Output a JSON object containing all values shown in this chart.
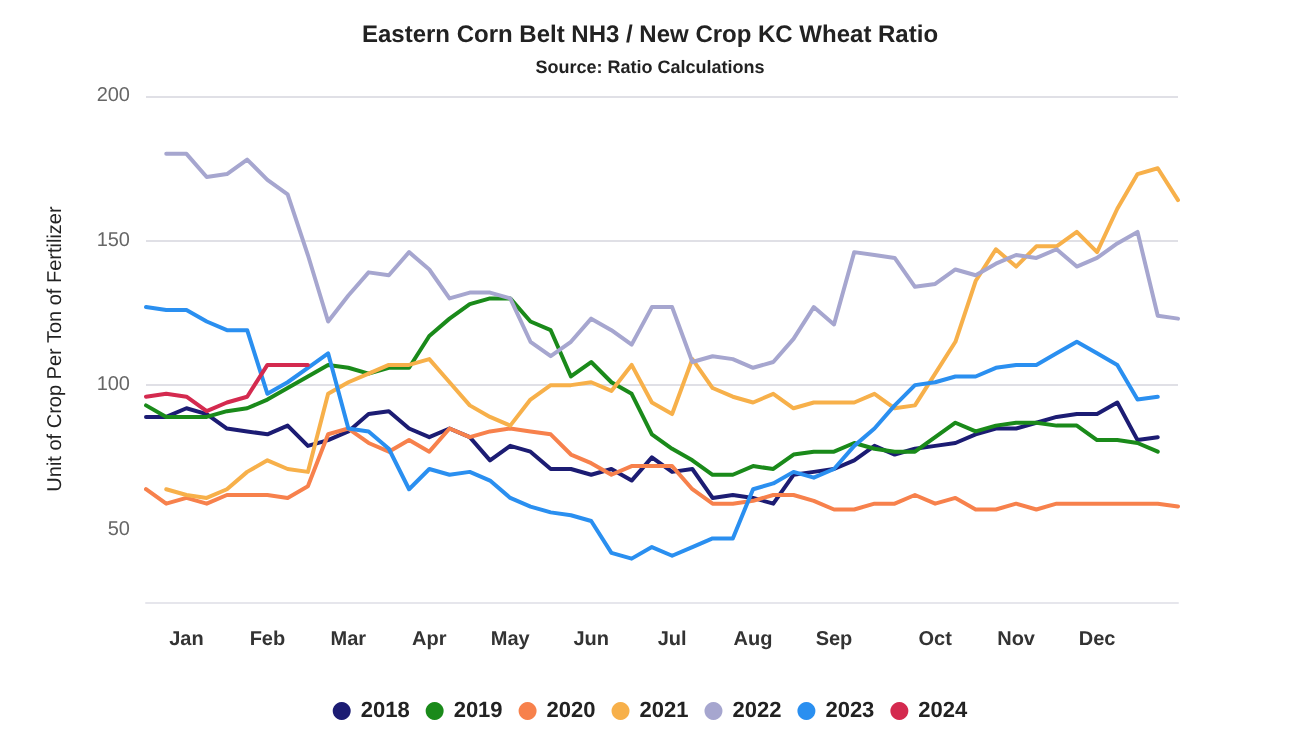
{
  "chart_data": {
    "type": "line",
    "title": "Eastern Corn Belt NH3 / New Crop KC Wheat Ratio",
    "subtitle": "Source: Ratio Calculations",
    "ylabel": "Unit of Crop Per Ton of Fertilizer",
    "categories": [
      null,
      null,
      "Jan",
      null,
      null,
      null,
      "Feb",
      null,
      null,
      null,
      "Mar",
      null,
      null,
      null,
      "Apr",
      null,
      null,
      null,
      "May",
      null,
      null,
      null,
      "Jun",
      null,
      null,
      null,
      "Jul",
      null,
      null,
      null,
      "Aug",
      null,
      null,
      null,
      "Sep",
      null,
      null,
      null,
      null,
      "Oct",
      null,
      null,
      null,
      "Nov",
      null,
      null,
      null,
      "Dec",
      null,
      null,
      null,
      null
    ],
    "ylim": [
      25,
      200
    ],
    "yticks": [
      50,
      100,
      150,
      200
    ],
    "grid": "y",
    "legend": "bottom",
    "marker": "none",
    "line_style": "solid",
    "series": [
      {
        "name": "2018",
        "color": "#1c1c73",
        "values": [
          89,
          89,
          92,
          90,
          85,
          84,
          83,
          86,
          79,
          81,
          84,
          90,
          91,
          85,
          82,
          85,
          82,
          74,
          79,
          77,
          71,
          71,
          69,
          71,
          67,
          75,
          70,
          71,
          61,
          62,
          61,
          59,
          69,
          70,
          71,
          74,
          79,
          76,
          78,
          79,
          80,
          83,
          85,
          85,
          87,
          89,
          90,
          90,
          94,
          81,
          82,
          null
        ]
      },
      {
        "name": "2019",
        "color": "#1a8a1a",
        "values": [
          93,
          89,
          89,
          89,
          91,
          92,
          95,
          99,
          103,
          107,
          106,
          104,
          106,
          106,
          117,
          123,
          128,
          130,
          130,
          122,
          119,
          103,
          108,
          101,
          97,
          83,
          78,
          74,
          69,
          69,
          72,
          71,
          76,
          77,
          77,
          80,
          78,
          77,
          77,
          82,
          87,
          84,
          86,
          87,
          87,
          86,
          86,
          81,
          81,
          80,
          77,
          null
        ]
      },
      {
        "name": "2020",
        "color": "#f7814c",
        "values": [
          64,
          59,
          61,
          59,
          62,
          62,
          62,
          61,
          65,
          83,
          85,
          80,
          77,
          81,
          77,
          85,
          82,
          84,
          85,
          84,
          83,
          76,
          73,
          69,
          72,
          72,
          72,
          64,
          59,
          59,
          60,
          62,
          62,
          60,
          57,
          57,
          59,
          59,
          62,
          59,
          61,
          57,
          57,
          59,
          57,
          59,
          59,
          59,
          59,
          59,
          59,
          58
        ]
      },
      {
        "name": "2021",
        "color": "#f7b04a",
        "values": [
          null,
          64,
          62,
          61,
          64,
          70,
          74,
          71,
          70,
          97,
          101,
          104,
          107,
          107,
          109,
          101,
          93,
          89,
          86,
          95,
          100,
          100,
          101,
          98,
          107,
          94,
          90,
          109,
          99,
          96,
          94,
          97,
          92,
          94,
          94,
          94,
          97,
          92,
          93,
          104,
          115,
          136,
          147,
          141,
          148,
          148,
          153,
          146,
          161,
          173,
          175,
          164
        ]
      },
      {
        "name": "2022",
        "color": "#a6a6cf",
        "values": [
          null,
          180,
          180,
          172,
          173,
          178,
          171,
          166,
          145,
          122,
          131,
          139,
          138,
          146,
          140,
          130,
          132,
          132,
          130,
          115,
          110,
          115,
          123,
          119,
          114,
          127,
          127,
          108,
          110,
          109,
          106,
          108,
          116,
          127,
          121,
          146,
          145,
          144,
          134,
          135,
          140,
          138,
          142,
          145,
          144,
          147,
          141,
          144,
          149,
          153,
          124,
          123
        ]
      },
      {
        "name": "2023",
        "color": "#2a8ff0",
        "values": [
          127,
          126,
          126,
          122,
          119,
          119,
          97,
          101,
          106,
          111,
          85,
          84,
          78,
          64,
          71,
          69,
          70,
          67,
          61,
          58,
          56,
          55,
          53,
          42,
          40,
          44,
          41,
          44,
          47,
          47,
          64,
          66,
          70,
          68,
          71,
          79,
          85,
          93,
          100,
          101,
          103,
          103,
          106,
          107,
          107,
          111,
          115,
          111,
          107,
          95,
          96,
          null
        ]
      },
      {
        "name": "2024",
        "color": "#d42a4f",
        "values": [
          96,
          97,
          96,
          91,
          94,
          96,
          107,
          107,
          107,
          null,
          null,
          null,
          null,
          null,
          null,
          null,
          null,
          null,
          null,
          null,
          null,
          null,
          null,
          null,
          null,
          null,
          null,
          null,
          null,
          null,
          null,
          null,
          null,
          null,
          null,
          null,
          null,
          null,
          null,
          null,
          null,
          null,
          null,
          null,
          null,
          null,
          null,
          null,
          null,
          null,
          null,
          null
        ]
      }
    ]
  }
}
